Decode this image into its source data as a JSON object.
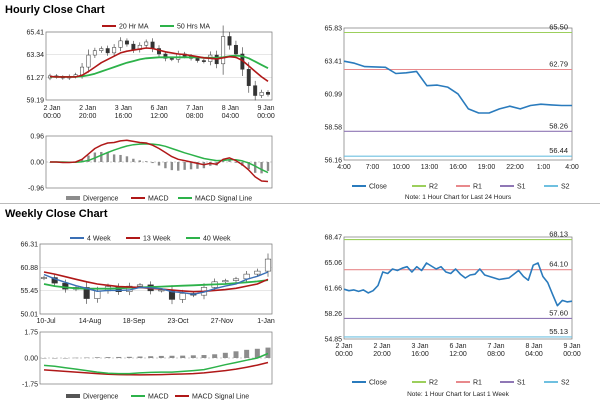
{
  "sections": {
    "hourly_title": "Hourly Close Chart",
    "weekly_title": "Weekly Close Chart"
  },
  "colors": {
    "ma_short": "#b01818",
    "ma_long": "#2db24a",
    "ma_blue": "#3a6fb5",
    "close": "#2a7bbd",
    "r2": "#9ccf5c",
    "r1": "#e8898c",
    "s1": "#8f77b5",
    "s2": "#6fc0e0",
    "divergence": "#8c8c8c"
  },
  "chart_data": [
    {
      "id": "hourly_price",
      "type": "candlestick",
      "legend": [
        "20 Hr MA",
        "50 Hrs MA"
      ],
      "ylim": [
        59.19,
        65.41
      ],
      "yticks": [
        "65.41",
        "63.34",
        "61.27",
        "59.19"
      ],
      "xticks": [
        "2 Jan\n00:00",
        "2 Jan\n20:00",
        "3 Jan\n16:00",
        "6 Jan\n12:00",
        "7 Jan\n08:00",
        "8 Jan\n04:00",
        "9 Jan\n00:00"
      ],
      "close": [
        61.4,
        61.3,
        61.2,
        61.35,
        61.5,
        62.2,
        63.3,
        63.7,
        63.9,
        63.5,
        64.0,
        64.6,
        64.3,
        63.8,
        64.2,
        64.5,
        63.9,
        63.4,
        63.0,
        62.9,
        63.4,
        63.2,
        63.0,
        62.8,
        62.7,
        63.3,
        62.5,
        65.0,
        64.2,
        63.4,
        62.0,
        60.5,
        59.6,
        59.9,
        59.7
      ],
      "ma20": [
        61.35,
        61.3,
        61.3,
        61.3,
        61.3,
        61.45,
        61.8,
        62.2,
        62.6,
        62.9,
        63.2,
        63.5,
        63.65,
        63.75,
        63.85,
        63.95,
        63.9,
        63.75,
        63.6,
        63.5,
        63.4,
        63.35,
        63.25,
        63.15,
        63.05,
        63.0,
        62.95,
        63.05,
        63.15,
        63.1,
        62.8,
        62.3,
        61.8,
        61.3,
        60.9
      ],
      "ma50": [
        61.3,
        61.3,
        61.3,
        61.3,
        61.3,
        61.35,
        61.45,
        61.6,
        61.8,
        62.0,
        62.2,
        62.4,
        62.6,
        62.75,
        62.9,
        63.0,
        63.05,
        63.1,
        63.1,
        63.1,
        63.1,
        63.1,
        63.1,
        63.1,
        63.05,
        63.05,
        63.05,
        63.1,
        63.2,
        63.25,
        63.2,
        63.0,
        62.7,
        62.4,
        62.1
      ]
    },
    {
      "id": "hourly_macd",
      "type": "bar+line",
      "legend": [
        "Divergence",
        "MACD",
        "MACD Signal Line"
      ],
      "ylim": [
        -0.96,
        0.96
      ],
      "yticks": [
        "0.96",
        "0.00",
        "-0.96"
      ],
      "macd": [
        0.0,
        0.0,
        -0.02,
        -0.02,
        0.0,
        0.1,
        0.3,
        0.5,
        0.62,
        0.7,
        0.72,
        0.78,
        0.8,
        0.76,
        0.72,
        0.7,
        0.62,
        0.5,
        0.35,
        0.2,
        0.1,
        0.05,
        0.0,
        -0.05,
        -0.1,
        -0.05,
        -0.08,
        0.1,
        0.15,
        0.05,
        -0.1,
        -0.3,
        -0.55,
        -0.7,
        -0.72
      ],
      "signal": [
        0.0,
        0.0,
        0.0,
        -0.01,
        -0.01,
        0.01,
        0.06,
        0.15,
        0.25,
        0.35,
        0.44,
        0.52,
        0.59,
        0.64,
        0.66,
        0.67,
        0.66,
        0.63,
        0.58,
        0.5,
        0.42,
        0.34,
        0.27,
        0.2,
        0.13,
        0.09,
        0.05,
        0.06,
        0.08,
        0.08,
        0.04,
        -0.04,
        -0.15,
        -0.28,
        -0.39
      ],
      "divergence": [
        0.0,
        0.0,
        -0.02,
        -0.01,
        0.01,
        0.09,
        0.24,
        0.35,
        0.37,
        0.35,
        0.28,
        0.26,
        0.21,
        0.12,
        0.06,
        0.03,
        -0.04,
        -0.13,
        -0.23,
        -0.3,
        -0.32,
        -0.29,
        -0.27,
        -0.25,
        -0.23,
        -0.14,
        -0.13,
        0.04,
        0.07,
        -0.03,
        -0.14,
        -0.26,
        -0.4,
        -0.42,
        -0.33
      ]
    },
    {
      "id": "hourly_24h",
      "type": "line",
      "ylim": [
        56.16,
        65.83
      ],
      "yticks": [
        "65.83",
        "63.41",
        "60.99",
        "58.58",
        "56.16"
      ],
      "xticks": [
        "4:00",
        "7:00",
        "10:00",
        "13:00",
        "16:00",
        "19:00",
        "22:00",
        "1:00",
        "4:00"
      ],
      "values": [
        63.4,
        63.25,
        63.0,
        62.98,
        62.95,
        62.5,
        62.55,
        62.65,
        61.6,
        61.65,
        61.5,
        61.0,
        59.9,
        59.6,
        59.6,
        59.9,
        60.1,
        59.9,
        60.15,
        60.25,
        60.2,
        60.15,
        60.15
      ],
      "levels": [
        {
          "name": "R2",
          "value": 65.5,
          "label": "65.50"
        },
        {
          "name": "R1",
          "value": 62.79,
          "label": "62.79"
        },
        {
          "name": "S1",
          "value": 58.26,
          "label": "58.26"
        },
        {
          "name": "S2",
          "value": 56.44,
          "label": "56.44"
        }
      ],
      "legend": [
        "Close",
        "R2",
        "R1",
        "S1",
        "S2"
      ],
      "note": "Note: 1 Hour Chart for Last 24 Hours"
    },
    {
      "id": "weekly_price",
      "type": "candlestick",
      "legend": [
        "4 Week",
        "13 Week",
        "40 Week"
      ],
      "ylim": [
        50.01,
        66.31
      ],
      "yticks": [
        "66.31",
        "60.88",
        "55.45",
        "50.01"
      ],
      "xticks": [
        "10-Jul",
        "14-Aug",
        "18-Sep",
        "23-Oct",
        "27-Nov",
        "1-Jan"
      ],
      "close": [
        58.5,
        57.2,
        55.8,
        56.2,
        53.6,
        55.4,
        56.4,
        55.2,
        56.5,
        56.8,
        55.4,
        55.6,
        53.4,
        54.8,
        54.4,
        56.2,
        57.5,
        57.8,
        58.2,
        59.3,
        60.0,
        62.8
      ],
      "wk4": [
        59.2,
        58.2,
        57.4,
        56.6,
        56.0,
        55.3,
        55.5,
        55.5,
        55.6,
        56.2,
        56.1,
        55.9,
        55.2,
        55.0,
        54.6,
        55.1,
        55.9,
        56.5,
        57.0,
        58.1,
        58.8,
        59.8
      ],
      "wk13": [
        59.8,
        59.3,
        58.7,
        58.1,
        57.5,
        57.0,
        56.7,
        56.4,
        56.3,
        56.2,
        56.0,
        55.8,
        55.6,
        55.4,
        55.2,
        55.3,
        55.5,
        55.7,
        56.0,
        56.5,
        57.0,
        58.1
      ],
      "wk40": [
        57.0,
        56.5,
        56.2,
        56.0,
        55.9,
        55.9,
        55.9,
        56.0,
        56.1,
        56.2,
        56.3,
        56.4,
        56.5,
        56.6,
        56.7,
        56.8,
        56.9,
        57.0,
        57.2,
        57.4,
        57.6,
        57.9
      ]
    },
    {
      "id": "weekly_macd",
      "type": "bar+line",
      "legend": [
        "Divergence",
        "MACD",
        "MACD Signal Line"
      ],
      "ylim": [
        -1.75,
        1.75
      ],
      "yticks": [
        "1.75",
        "0.00",
        "-1.75"
      ],
      "macd": [
        -0.5,
        -0.55,
        -0.65,
        -0.75,
        -0.85,
        -0.95,
        -1.02,
        -1.05,
        -1.05,
        -1.0,
        -0.97,
        -0.95,
        -0.95,
        -0.9,
        -0.85,
        -0.78,
        -0.62,
        -0.45,
        -0.3,
        -0.15,
        0.0,
        0.3
      ],
      "signal": [
        -0.8,
        -0.85,
        -0.9,
        -0.95,
        -1.0,
        -1.05,
        -1.1,
        -1.12,
        -1.13,
        -1.14,
        -1.13,
        -1.12,
        -1.1,
        -1.08,
        -1.05,
        -1.0,
        -0.93,
        -0.85,
        -0.75,
        -0.62,
        -0.48,
        -0.3
      ],
      "divergence": [
        0.0,
        0.0,
        0.0,
        0.02,
        0.03,
        0.05,
        0.06,
        0.07,
        0.08,
        0.1,
        0.12,
        0.14,
        0.15,
        0.16,
        0.18,
        0.2,
        0.25,
        0.35,
        0.45,
        0.55,
        0.62,
        0.7
      ]
    },
    {
      "id": "weekly_week",
      "type": "line",
      "ylim": [
        54.85,
        68.47
      ],
      "yticks": [
        "68.47",
        "65.06",
        "61.66",
        "58.26",
        "54.85"
      ],
      "xticks": [
        "2 Jan\n00:00",
        "2 Jan\n20:00",
        "3 Jan\n16:00",
        "6 Jan\n12:00",
        "7 Jan\n08:00",
        "8 Jan\n04:00",
        "9 Jan\n00:00"
      ],
      "values": [
        61.5,
        61.3,
        61.4,
        61.2,
        61.4,
        61.0,
        61.3,
        62.0,
        63.8,
        63.6,
        64.2,
        64.0,
        64.3,
        64.5,
        63.8,
        64.5,
        64.0,
        65.0,
        64.6,
        64.2,
        64.5,
        63.8,
        63.6,
        64.2,
        63.5,
        63.0,
        63.4,
        63.5,
        64.2,
        63.4,
        63.2,
        63.0,
        62.8,
        62.9,
        63.0,
        63.5,
        64.0,
        63.2,
        62.7,
        64.7,
        65.0,
        63.2,
        62.4,
        60.8,
        59.3,
        60.0,
        59.8,
        59.9
      ],
      "levels": [
        {
          "name": "R2",
          "value": 68.13,
          "label": "68.13"
        },
        {
          "name": "R1",
          "value": 64.1,
          "label": "64.10"
        },
        {
          "name": "S1",
          "value": 57.6,
          "label": "57.60"
        },
        {
          "name": "S2",
          "value": 55.13,
          "label": "55.13"
        }
      ],
      "legend": [
        "Close",
        "R2",
        "R1",
        "S1",
        "S2"
      ],
      "note": "Note: 1 Hour Chart for Last 1 Week"
    }
  ]
}
